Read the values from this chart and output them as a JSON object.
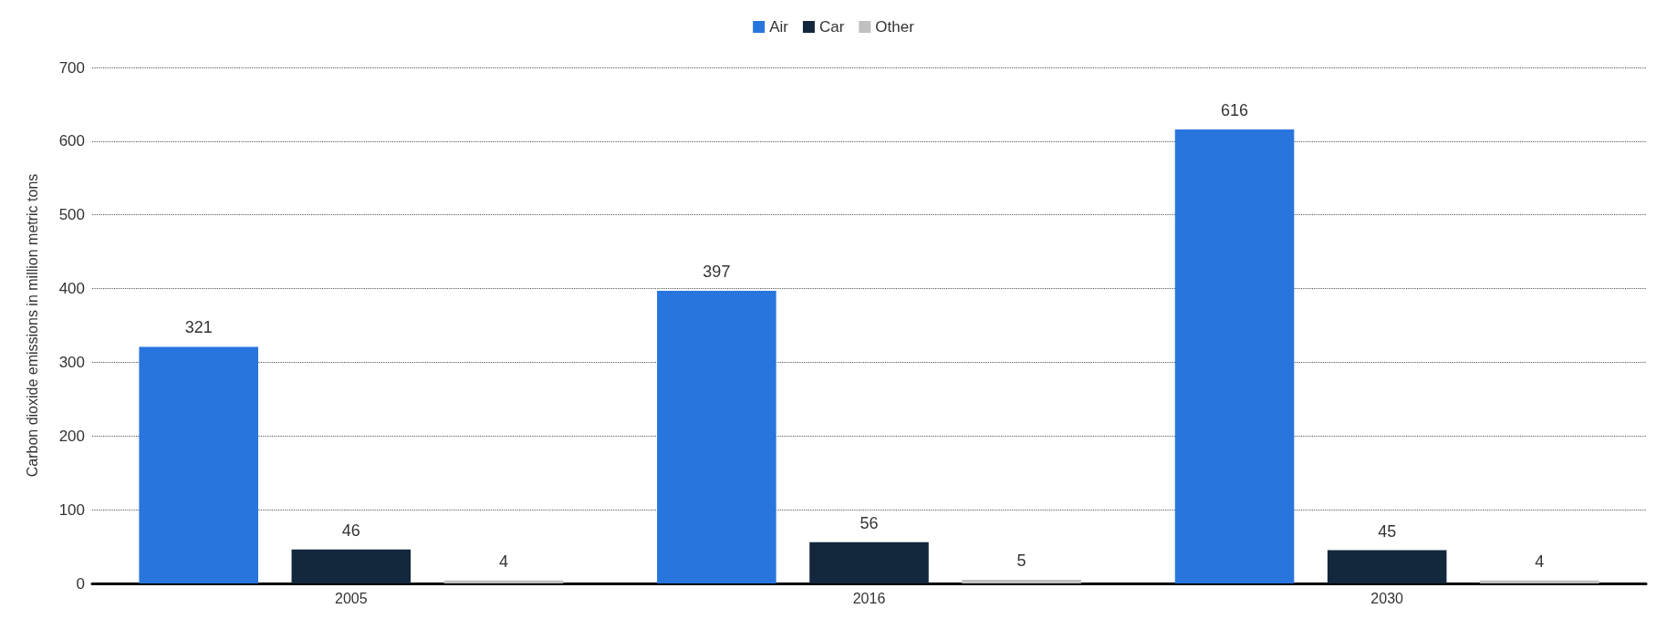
{
  "chart_data": {
    "type": "bar",
    "ylabel": "Carbon dioxide emissions in million metric tons",
    "categories": [
      "2005",
      "2016",
      "2030"
    ],
    "series": [
      {
        "name": "Air",
        "color": "#2876dd",
        "values": [
          321,
          397,
          616
        ]
      },
      {
        "name": "Car",
        "color": "#13283d",
        "values": [
          46,
          56,
          45
        ]
      },
      {
        "name": "Other",
        "color": "#c0c0c0",
        "values": [
          4,
          5,
          4
        ]
      }
    ],
    "ylim": [
      0,
      700
    ],
    "yticks": [
      0,
      100,
      200,
      300,
      400,
      500,
      600,
      700
    ],
    "grid": "y",
    "legend": "top",
    "data_labels": true
  }
}
